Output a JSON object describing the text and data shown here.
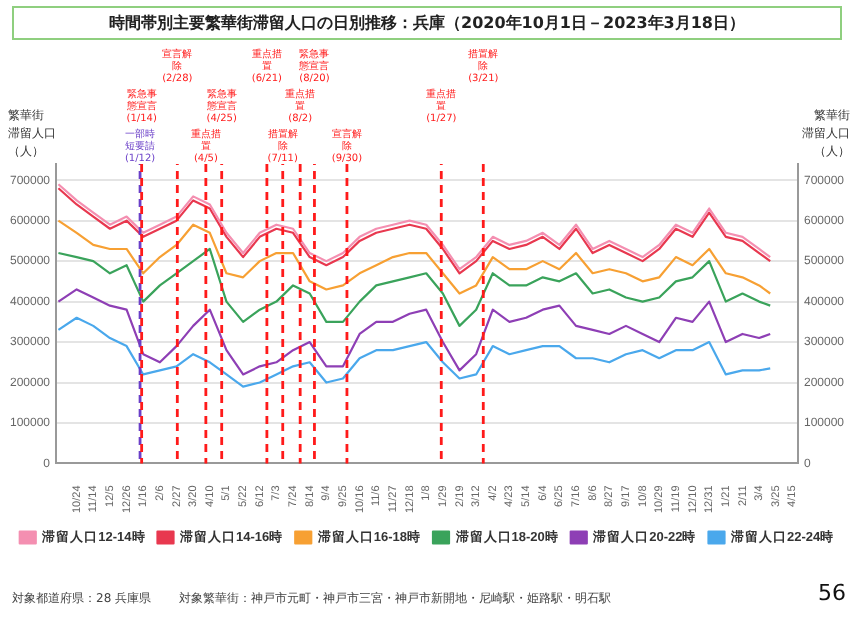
{
  "chart_data": {
    "type": "line",
    "title": "時間帯別主要繁華街滞留人口の日別推移：兵庫（2020年10月1日－2023年3月18日）",
    "ylabel": "繁華街滞留人口（人）",
    "y2label": "繁華街滞留人口（人）",
    "x": [
      "2020-10-01",
      "2020-10-24",
      "2020-11-14",
      "2020-12-05",
      "2020-12-26",
      "2021-01-16",
      "2021-02-06",
      "2021-02-27",
      "2021-03-20",
      "2021-04-10",
      "2021-05-01",
      "2021-05-22",
      "2021-06-12",
      "2021-07-03",
      "2021-07-24",
      "2021-08-14",
      "2021-09-04",
      "2021-09-25",
      "2021-10-16",
      "2021-11-06",
      "2021-11-27",
      "2021-12-18",
      "2022-01-08",
      "2022-01-29",
      "2022-02-19",
      "2022-03-12",
      "2022-04-02",
      "2022-04-23",
      "2022-05-14",
      "2022-06-04",
      "2022-06-25",
      "2022-07-16",
      "2022-08-06",
      "2022-08-27",
      "2022-09-17",
      "2022-10-08",
      "2022-10-29",
      "2022-11-19",
      "2022-12-10",
      "2022-12-31",
      "2023-01-21",
      "2023-02-11",
      "2023-03-04",
      "2023-03-18"
    ],
    "series": [
      {
        "name": "滞留人口12-14時",
        "color": "#f48fb1",
        "values": [
          690000,
          650000,
          620000,
          590000,
          610000,
          570000,
          590000,
          610000,
          660000,
          640000,
          570000,
          520000,
          570000,
          590000,
          580000,
          520000,
          500000,
          520000,
          560000,
          580000,
          590000,
          600000,
          590000,
          540000,
          480000,
          510000,
          560000,
          540000,
          550000,
          570000,
          540000,
          590000,
          530000,
          550000,
          530000,
          510000,
          540000,
          590000,
          570000,
          630000,
          570000,
          560000,
          530000,
          510000
        ]
      },
      {
        "name": "滞留人口14-16時",
        "color": "#e8384f",
        "values": [
          680000,
          640000,
          610000,
          580000,
          600000,
          560000,
          580000,
          600000,
          650000,
          630000,
          560000,
          510000,
          560000,
          580000,
          570000,
          510000,
          490000,
          510000,
          550000,
          570000,
          580000,
          590000,
          580000,
          530000,
          470000,
          500000,
          550000,
          530000,
          540000,
          560000,
          530000,
          580000,
          520000,
          540000,
          520000,
          500000,
          530000,
          580000,
          560000,
          620000,
          560000,
          550000,
          520000,
          500000
        ]
      },
      {
        "name": "滞留人口16-18時",
        "color": "#f7a033",
        "values": [
          600000,
          570000,
          540000,
          530000,
          530000,
          470000,
          510000,
          540000,
          590000,
          570000,
          470000,
          460000,
          500000,
          520000,
          520000,
          450000,
          430000,
          440000,
          470000,
          490000,
          510000,
          520000,
          520000,
          470000,
          420000,
          440000,
          510000,
          480000,
          480000,
          500000,
          480000,
          520000,
          470000,
          480000,
          470000,
          450000,
          460000,
          510000,
          490000,
          530000,
          470000,
          460000,
          440000,
          420000
        ]
      },
      {
        "name": "滞留人口18-20時",
        "color": "#3aa35b",
        "values": [
          520000,
          510000,
          500000,
          470000,
          490000,
          400000,
          440000,
          470000,
          500000,
          530000,
          400000,
          350000,
          380000,
          400000,
          440000,
          420000,
          350000,
          350000,
          400000,
          440000,
          450000,
          460000,
          470000,
          420000,
          340000,
          380000,
          470000,
          440000,
          440000,
          460000,
          450000,
          470000,
          420000,
          430000,
          410000,
          400000,
          410000,
          450000,
          460000,
          500000,
          400000,
          420000,
          400000,
          390000
        ]
      },
      {
        "name": "滞留人口20-22時",
        "color": "#8e3fb5",
        "values": [
          400000,
          430000,
          410000,
          390000,
          380000,
          270000,
          250000,
          290000,
          340000,
          380000,
          280000,
          220000,
          240000,
          250000,
          280000,
          300000,
          240000,
          240000,
          320000,
          350000,
          350000,
          370000,
          380000,
          300000,
          230000,
          270000,
          380000,
          350000,
          360000,
          380000,
          390000,
          340000,
          330000,
          320000,
          340000,
          320000,
          300000,
          360000,
          350000,
          400000,
          300000,
          320000,
          310000,
          320000
        ]
      },
      {
        "name": "滞留人口22-24時",
        "color": "#4aa8ec",
        "values": [
          330000,
          360000,
          340000,
          310000,
          290000,
          220000,
          230000,
          240000,
          270000,
          250000,
          220000,
          190000,
          200000,
          220000,
          240000,
          250000,
          200000,
          210000,
          260000,
          280000,
          280000,
          290000,
          300000,
          250000,
          210000,
          220000,
          290000,
          270000,
          280000,
          290000,
          290000,
          260000,
          260000,
          250000,
          270000,
          280000,
          260000,
          280000,
          280000,
          300000,
          220000,
          230000,
          230000,
          235000
        ]
      }
    ],
    "xlim": [
      "2020-09-28",
      "2023-04-22"
    ],
    "xticks": [
      {
        "value": "2020-10-24",
        "label": "10/24"
      },
      {
        "value": "2020-11-14",
        "label": "11/14"
      },
      {
        "value": "2020-12-05",
        "label": "12/5"
      },
      {
        "value": "2020-12-26",
        "label": "12/26"
      },
      {
        "value": "2021-01-16",
        "label": "1/16"
      },
      {
        "value": "2021-02-06",
        "label": "2/6"
      },
      {
        "value": "2021-02-27",
        "label": "2/27"
      },
      {
        "value": "2021-03-20",
        "label": "3/20"
      },
      {
        "value": "2021-04-10",
        "label": "4/10"
      },
      {
        "value": "2021-05-01",
        "label": "5/1"
      },
      {
        "value": "2021-05-22",
        "label": "5/22"
      },
      {
        "value": "2021-06-12",
        "label": "6/12"
      },
      {
        "value": "2021-07-03",
        "label": "7/3"
      },
      {
        "value": "2021-07-24",
        "label": "7/24"
      },
      {
        "value": "2021-08-14",
        "label": "8/14"
      },
      {
        "value": "2021-09-04",
        "label": "9/4"
      },
      {
        "value": "2021-09-25",
        "label": "9/25"
      },
      {
        "value": "2021-10-16",
        "label": "10/16"
      },
      {
        "value": "2021-11-06",
        "label": "11/6"
      },
      {
        "value": "2021-11-27",
        "label": "11/27"
      },
      {
        "value": "2021-12-18",
        "label": "12/18"
      },
      {
        "value": "2022-01-08",
        "label": "1/8"
      },
      {
        "value": "2022-01-29",
        "label": "1/29"
      },
      {
        "value": "2022-02-19",
        "label": "2/19"
      },
      {
        "value": "2022-03-12",
        "label": "3/12"
      },
      {
        "value": "2022-04-02",
        "label": "4/2"
      },
      {
        "value": "2022-04-23",
        "label": "4/23"
      },
      {
        "value": "2022-05-14",
        "label": "5/14"
      },
      {
        "value": "2022-06-04",
        "label": "6/4"
      },
      {
        "value": "2022-06-25",
        "label": "6/25"
      },
      {
        "value": "2022-07-16",
        "label": "7/16"
      },
      {
        "value": "2022-08-06",
        "label": "8/6"
      },
      {
        "value": "2022-08-27",
        "label": "8/27"
      },
      {
        "value": "2022-09-17",
        "label": "9/17"
      },
      {
        "value": "2022-10-08",
        "label": "10/8"
      },
      {
        "value": "2022-10-29",
        "label": "10/29"
      },
      {
        "value": "2022-11-19",
        "label": "11/19"
      },
      {
        "value": "2022-12-10",
        "label": "12/10"
      },
      {
        "value": "2022-12-31",
        "label": "12/31"
      },
      {
        "value": "2023-01-21",
        "label": "1/21"
      },
      {
        "value": "2023-02-11",
        "label": "2/11"
      },
      {
        "value": "2023-03-04",
        "label": "3/4"
      },
      {
        "value": "2023-03-25",
        "label": "3/25"
      },
      {
        "value": "2023-04-15",
        "label": "4/15"
      }
    ],
    "ylim": [
      0,
      740000
    ],
    "yticks": [
      0,
      100000,
      200000,
      300000,
      400000,
      500000,
      600000,
      700000
    ],
    "y2lim": [
      0,
      740000
    ],
    "y2ticks": [
      0,
      100000,
      200000,
      300000,
      400000,
      500000,
      600000,
      700000
    ],
    "ref_lines": [
      {
        "axis": "x",
        "value": "2021-01-12",
        "label": "一部時短要請(1/12)",
        "color": "#6a3fc8",
        "line_style": "dashed"
      },
      {
        "axis": "x",
        "value": "2021-01-14",
        "label": "緊急事態宣言(1/14)",
        "color": "#ff1a1a",
        "line_style": "dashed"
      },
      {
        "axis": "x",
        "value": "2021-02-28",
        "label": "宣言解除(2/28)",
        "color": "#ff1a1a",
        "line_style": "dashed"
      },
      {
        "axis": "x",
        "value": "2021-04-05",
        "label": "重点措置(4/5)",
        "color": "#ff1a1a",
        "line_style": "dashed"
      },
      {
        "axis": "x",
        "value": "2021-04-25",
        "label": "緊急事態宣言(4/25)",
        "color": "#ff1a1a",
        "line_style": "dashed"
      },
      {
        "axis": "x",
        "value": "2021-06-21",
        "label": "重点措置(6/21)",
        "color": "#ff1a1a",
        "line_style": "dashed"
      },
      {
        "axis": "x",
        "value": "2021-07-11",
        "label": "措置解除(7/11)",
        "color": "#ff1a1a",
        "line_style": "dashed"
      },
      {
        "axis": "x",
        "value": "2021-08-02",
        "label": "重点措置(8/2)",
        "color": "#ff1a1a",
        "line_style": "dashed"
      },
      {
        "axis": "x",
        "value": "2021-08-20",
        "label": "緊急事態宣言(8/20)",
        "color": "#ff1a1a",
        "line_style": "dashed"
      },
      {
        "axis": "x",
        "value": "2021-09-30",
        "label": "宣言解除(9/30)",
        "color": "#ff1a1a",
        "line_style": "dashed"
      },
      {
        "axis": "x",
        "value": "2022-01-27",
        "label": "重点措置(1/27)",
        "color": "#ff1a1a",
        "line_style": "dashed"
      },
      {
        "axis": "x",
        "value": "2022-03-21",
        "label": "措置解除(3/21)",
        "color": "#ff1a1a",
        "line_style": "dashed"
      }
    ],
    "annotations": [
      "対象都道府県：28 兵庫県",
      "対象繁華街：神戸市元町・神戸市三宮・神戸市新開地・尼崎駅・姫路駅・明石駅",
      "56"
    ],
    "grid": "y",
    "legend": "bottom",
    "marker": "none",
    "line_style": "solid"
  }
}
